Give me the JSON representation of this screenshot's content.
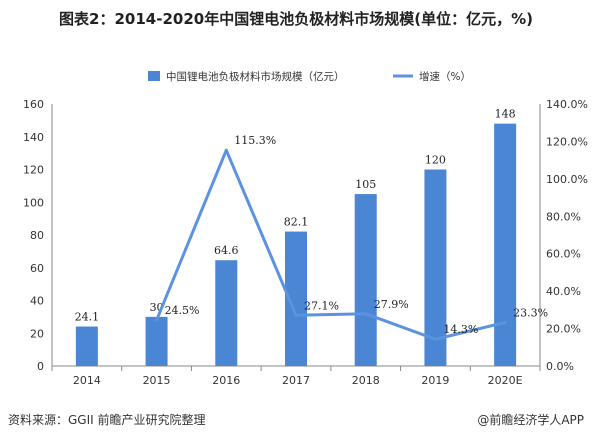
{
  "title": "图表2：2014-2020年中国锂电池负极材料市场规模(单位：亿元，%)",
  "source": "资料来源：GGII 前瞻产业研究院整理",
  "credit": "@前瞻经济学人APP",
  "colors": {
    "bar": "#4a86d4",
    "line": "#5b93e0",
    "axis": "#888888"
  },
  "chart_data": {
    "type": "bar",
    "categories": [
      "2014",
      "2015",
      "2016",
      "2017",
      "2018",
      "2019",
      "2020E"
    ],
    "series": [
      {
        "name": "中国锂电池负极材料市场规模（亿元）",
        "type": "bar",
        "axis": "left",
        "values": [
          24.1,
          30,
          64.6,
          82.1,
          105,
          120,
          148
        ],
        "labels": [
          "24.1",
          "30",
          "64.6",
          "82.1",
          "105",
          "120",
          "148"
        ]
      },
      {
        "name": "增速（%）",
        "type": "line",
        "axis": "right",
        "values": [
          null,
          24.5,
          115.3,
          27.1,
          27.9,
          14.3,
          23.3
        ],
        "labels": [
          "",
          "24.5%",
          "115.3%",
          "27.1%",
          "27.9%",
          "14.3%",
          "23.3%"
        ]
      }
    ],
    "y_left": {
      "range": [
        0,
        160
      ],
      "ticks": [
        "0",
        "20",
        "40",
        "60",
        "80",
        "100",
        "120",
        "140",
        "160"
      ]
    },
    "y_right": {
      "range": [
        0,
        140
      ],
      "ticks": [
        "0.0%",
        "20.0%",
        "40.0%",
        "60.0%",
        "80.0%",
        "100.0%",
        "120.0%",
        "140.0%"
      ]
    },
    "legend": "top-center",
    "grid": false
  }
}
